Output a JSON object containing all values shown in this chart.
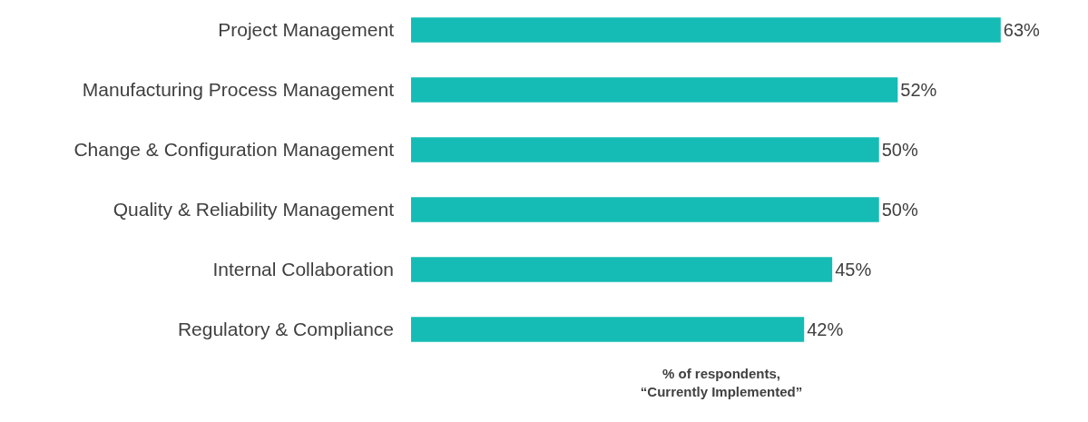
{
  "chart_data": {
    "type": "bar",
    "orientation": "horizontal",
    "categories": [
      "Project Management",
      "Manufacturing Process Management",
      "Change & Configuration Management",
      "Quality & Reliability Management",
      "Internal Collaboration",
      "Regulatory & Compliance"
    ],
    "values": [
      63,
      52,
      50,
      50,
      45,
      42
    ],
    "color": "#15bcb5",
    "value_labels": [
      "63%",
      "52%",
      "50%",
      "50%",
      "45%",
      "42%"
    ],
    "xlabel": "% of respondents,\n“Currently Implemented”",
    "grid": false,
    "legend": false
  }
}
